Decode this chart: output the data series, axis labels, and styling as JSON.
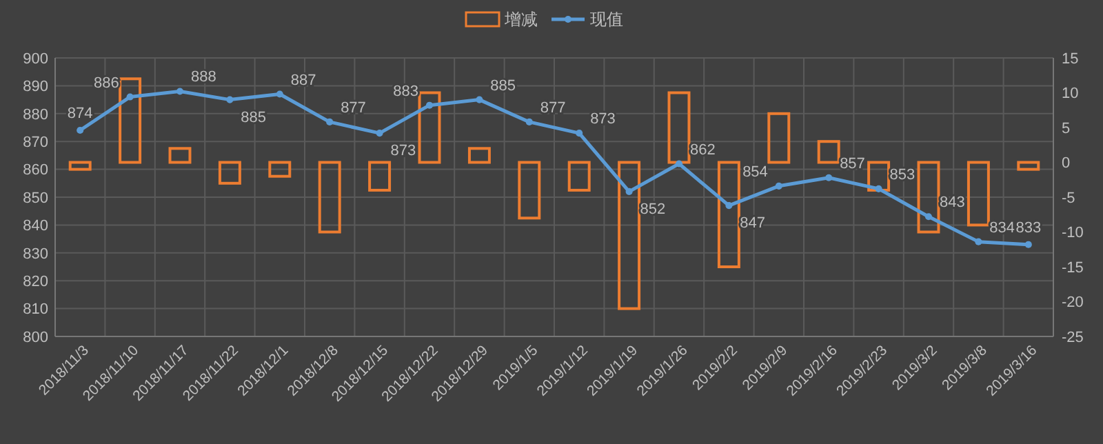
{
  "chart_data": {
    "type": "bar",
    "categories": [
      "2018/11/3",
      "2018/11/10",
      "2018/11/17",
      "2018/11/22",
      "2018/12/1",
      "2018/12/8",
      "2018/12/15",
      "2018/12/22",
      "2018/12/29",
      "2019/1/5",
      "2019/1/12",
      "2019/1/19",
      "2019/1/26",
      "2019/2/2",
      "2019/2/9",
      "2019/2/16",
      "2019/2/23",
      "2019/3/2",
      "2019/3/8",
      "2019/3/16"
    ],
    "series": [
      {
        "name": "增减",
        "type": "bar",
        "axis": "y2",
        "color": "#ed7d31",
        "values": [
          -1,
          12,
          2,
          -3,
          -2,
          -10,
          -4,
          10,
          2,
          -8,
          -4,
          -21,
          10,
          -15,
          7,
          3,
          -4,
          -10,
          -9,
          -1
        ]
      },
      {
        "name": "现值",
        "type": "line",
        "axis": "y",
        "color": "#5b9bd5",
        "marker": "circle",
        "values": [
          874,
          886,
          888,
          885,
          887,
          877,
          873,
          883,
          885,
          877,
          873,
          852,
          862,
          847,
          854,
          857,
          853,
          843,
          834,
          833
        ],
        "value_labels": [
          "874",
          "886",
          "888",
          "885",
          "887",
          "877",
          "873",
          "883",
          "885",
          "877",
          "873",
          "852",
          "862",
          "847",
          "854",
          "857",
          "853",
          "843",
          "834",
          "833"
        ]
      }
    ],
    "ylim": [
      800,
      900
    ],
    "yticks": [
      800,
      810,
      820,
      830,
      840,
      850,
      860,
      870,
      880,
      890,
      900
    ],
    "y2lim": [
      -25,
      15
    ],
    "y2ticks": [
      -25,
      -20,
      -15,
      -10,
      -5,
      0,
      5,
      10,
      15
    ],
    "grid": true,
    "legend": "top"
  }
}
